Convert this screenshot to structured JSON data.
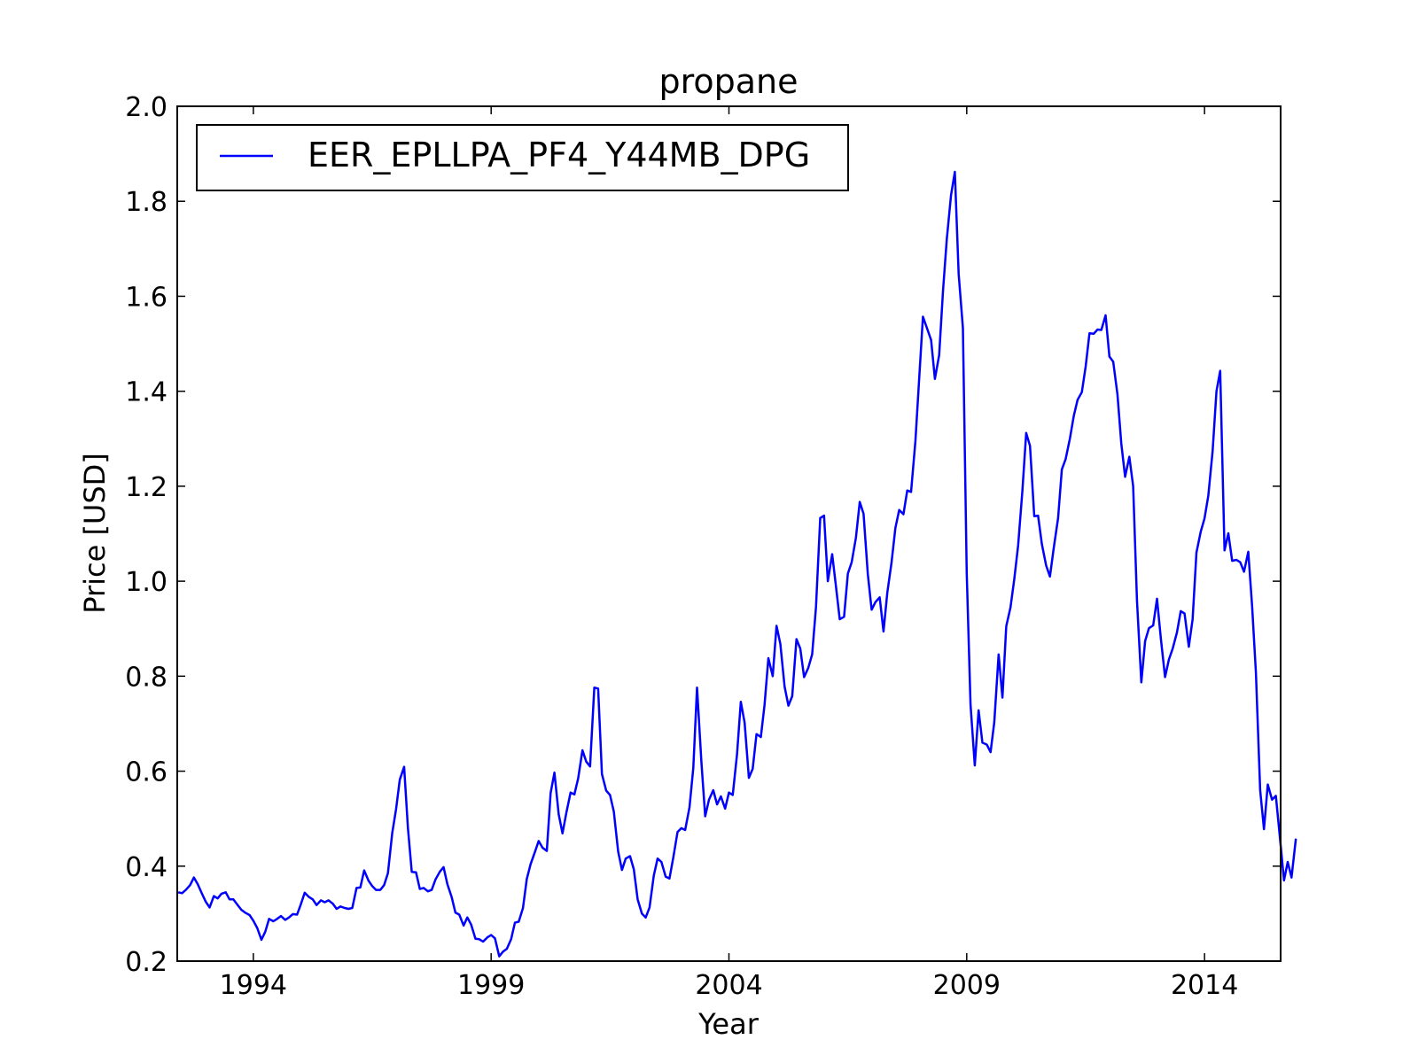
{
  "chart_data": {
    "type": "line",
    "title": "propane",
    "xlabel": "Year",
    "ylabel": "Price [USD]",
    "xlim": [
      1992.4,
      2015.6
    ],
    "ylim": [
      0.2,
      2.0
    ],
    "x_ticks": [
      1994,
      1999,
      2004,
      2009,
      2014
    ],
    "y_ticks": [
      0.2,
      0.4,
      0.6,
      0.8,
      1.0,
      1.2,
      1.4,
      1.6,
      1.8,
      2.0
    ],
    "y_tick_labels": [
      "0.2",
      "0.4",
      "0.6",
      "0.8",
      "1.0",
      "1.2",
      "1.4",
      "1.6",
      "1.8",
      "2.0"
    ],
    "legend_position": "top-left",
    "grid": false,
    "series": [
      {
        "name": "EER_EPLLPA_PF4_Y44MB_DPG",
        "color": "#0000ff",
        "points": [
          [
            1992.42,
            0.345
          ],
          [
            1992.5,
            0.343
          ],
          [
            1992.58,
            0.35
          ],
          [
            1992.67,
            0.36
          ],
          [
            1992.75,
            0.376
          ],
          [
            1992.83,
            0.362
          ],
          [
            1992.92,
            0.342
          ],
          [
            1993.0,
            0.325
          ],
          [
            1993.08,
            0.313
          ],
          [
            1993.17,
            0.337
          ],
          [
            1993.25,
            0.332
          ],
          [
            1993.33,
            0.342
          ],
          [
            1993.42,
            0.345
          ],
          [
            1993.5,
            0.33
          ],
          [
            1993.58,
            0.33
          ],
          [
            1993.67,
            0.318
          ],
          [
            1993.75,
            0.308
          ],
          [
            1993.83,
            0.302
          ],
          [
            1993.92,
            0.297
          ],
          [
            1994.0,
            0.285
          ],
          [
            1994.08,
            0.27
          ],
          [
            1994.17,
            0.245
          ],
          [
            1994.25,
            0.262
          ],
          [
            1994.33,
            0.289
          ],
          [
            1994.42,
            0.284
          ],
          [
            1994.5,
            0.289
          ],
          [
            1994.58,
            0.295
          ],
          [
            1994.67,
            0.287
          ],
          [
            1994.75,
            0.292
          ],
          [
            1994.83,
            0.299
          ],
          [
            1994.92,
            0.298
          ],
          [
            1995.0,
            0.32
          ],
          [
            1995.08,
            0.344
          ],
          [
            1995.17,
            0.335
          ],
          [
            1995.25,
            0.33
          ],
          [
            1995.33,
            0.318
          ],
          [
            1995.42,
            0.328
          ],
          [
            1995.5,
            0.324
          ],
          [
            1995.58,
            0.328
          ],
          [
            1995.67,
            0.321
          ],
          [
            1995.75,
            0.31
          ],
          [
            1995.83,
            0.315
          ],
          [
            1995.92,
            0.312
          ],
          [
            1996.0,
            0.31
          ],
          [
            1996.08,
            0.312
          ],
          [
            1996.17,
            0.354
          ],
          [
            1996.25,
            0.355
          ],
          [
            1996.33,
            0.391
          ],
          [
            1996.42,
            0.37
          ],
          [
            1996.5,
            0.358
          ],
          [
            1996.58,
            0.35
          ],
          [
            1996.67,
            0.35
          ],
          [
            1996.75,
            0.36
          ],
          [
            1996.83,
            0.385
          ],
          [
            1996.92,
            0.47
          ],
          [
            1997.0,
            0.52
          ],
          [
            1997.08,
            0.582
          ],
          [
            1997.17,
            0.609
          ],
          [
            1997.25,
            0.48
          ],
          [
            1997.33,
            0.388
          ],
          [
            1997.42,
            0.387
          ],
          [
            1997.5,
            0.352
          ],
          [
            1997.58,
            0.354
          ],
          [
            1997.67,
            0.347
          ],
          [
            1997.75,
            0.35
          ],
          [
            1997.83,
            0.372
          ],
          [
            1997.92,
            0.388
          ],
          [
            1998.0,
            0.398
          ],
          [
            1998.08,
            0.362
          ],
          [
            1998.17,
            0.335
          ],
          [
            1998.25,
            0.302
          ],
          [
            1998.33,
            0.298
          ],
          [
            1998.42,
            0.275
          ],
          [
            1998.5,
            0.292
          ],
          [
            1998.58,
            0.277
          ],
          [
            1998.67,
            0.247
          ],
          [
            1998.75,
            0.246
          ],
          [
            1998.83,
            0.241
          ],
          [
            1998.92,
            0.25
          ],
          [
            1999.0,
            0.255
          ],
          [
            1999.08,
            0.248
          ],
          [
            1999.17,
            0.21
          ],
          [
            1999.25,
            0.22
          ],
          [
            1999.33,
            0.226
          ],
          [
            1999.42,
            0.246
          ],
          [
            1999.5,
            0.281
          ],
          [
            1999.58,
            0.283
          ],
          [
            1999.67,
            0.312
          ],
          [
            1999.75,
            0.373
          ],
          [
            1999.83,
            0.404
          ],
          [
            1999.92,
            0.43
          ],
          [
            2000.0,
            0.453
          ],
          [
            2000.08,
            0.439
          ],
          [
            2000.17,
            0.432
          ],
          [
            2000.25,
            0.554
          ],
          [
            2000.33,
            0.597
          ],
          [
            2000.42,
            0.509
          ],
          [
            2000.5,
            0.469
          ],
          [
            2000.58,
            0.512
          ],
          [
            2000.67,
            0.555
          ],
          [
            2000.75,
            0.551
          ],
          [
            2000.83,
            0.585
          ],
          [
            2000.92,
            0.644
          ],
          [
            2001.0,
            0.62
          ],
          [
            2001.08,
            0.61
          ],
          [
            2001.17,
            0.776
          ],
          [
            2001.25,
            0.774
          ],
          [
            2001.33,
            0.594
          ],
          [
            2001.42,
            0.559
          ],
          [
            2001.5,
            0.55
          ],
          [
            2001.58,
            0.515
          ],
          [
            2001.67,
            0.431
          ],
          [
            2001.75,
            0.392
          ],
          [
            2001.83,
            0.416
          ],
          [
            2001.92,
            0.421
          ],
          [
            2002.0,
            0.393
          ],
          [
            2002.08,
            0.33
          ],
          [
            2002.17,
            0.3
          ],
          [
            2002.25,
            0.292
          ],
          [
            2002.33,
            0.313
          ],
          [
            2002.42,
            0.38
          ],
          [
            2002.5,
            0.416
          ],
          [
            2002.58,
            0.409
          ],
          [
            2002.67,
            0.378
          ],
          [
            2002.75,
            0.374
          ],
          [
            2002.83,
            0.418
          ],
          [
            2002.92,
            0.472
          ],
          [
            2003.0,
            0.48
          ],
          [
            2003.08,
            0.476
          ],
          [
            2003.17,
            0.524
          ],
          [
            2003.25,
            0.607
          ],
          [
            2003.33,
            0.776
          ],
          [
            2003.42,
            0.62
          ],
          [
            2003.5,
            0.505
          ],
          [
            2003.58,
            0.54
          ],
          [
            2003.67,
            0.56
          ],
          [
            2003.75,
            0.53
          ],
          [
            2003.83,
            0.547
          ],
          [
            2003.92,
            0.521
          ],
          [
            2004.0,
            0.555
          ],
          [
            2004.08,
            0.55
          ],
          [
            2004.17,
            0.635
          ],
          [
            2004.25,
            0.746
          ],
          [
            2004.33,
            0.702
          ],
          [
            2004.42,
            0.586
          ],
          [
            2004.5,
            0.605
          ],
          [
            2004.58,
            0.678
          ],
          [
            2004.67,
            0.672
          ],
          [
            2004.75,
            0.74
          ],
          [
            2004.83,
            0.838
          ],
          [
            2004.92,
            0.8
          ],
          [
            2005.0,
            0.906
          ],
          [
            2005.08,
            0.868
          ],
          [
            2005.17,
            0.778
          ],
          [
            2005.25,
            0.738
          ],
          [
            2005.33,
            0.758
          ],
          [
            2005.42,
            0.878
          ],
          [
            2005.5,
            0.858
          ],
          [
            2005.58,
            0.798
          ],
          [
            2005.67,
            0.818
          ],
          [
            2005.75,
            0.846
          ],
          [
            2005.83,
            0.945
          ],
          [
            2005.92,
            1.133
          ],
          [
            2006.0,
            1.138
          ],
          [
            2006.08,
            1.0
          ],
          [
            2006.17,
            1.057
          ],
          [
            2006.25,
            0.99
          ],
          [
            2006.33,
            0.92
          ],
          [
            2006.42,
            0.925
          ],
          [
            2006.5,
            1.016
          ],
          [
            2006.58,
            1.04
          ],
          [
            2006.67,
            1.092
          ],
          [
            2006.75,
            1.167
          ],
          [
            2006.83,
            1.142
          ],
          [
            2006.92,
            1.015
          ],
          [
            2007.0,
            0.94
          ],
          [
            2007.08,
            0.956
          ],
          [
            2007.17,
            0.966
          ],
          [
            2007.25,
            0.894
          ],
          [
            2007.33,
            0.976
          ],
          [
            2007.42,
            1.04
          ],
          [
            2007.5,
            1.112
          ],
          [
            2007.58,
            1.15
          ],
          [
            2007.67,
            1.141
          ],
          [
            2007.75,
            1.191
          ],
          [
            2007.83,
            1.188
          ],
          [
            2007.92,
            1.295
          ],
          [
            2008.0,
            1.428
          ],
          [
            2008.08,
            1.557
          ],
          [
            2008.17,
            1.531
          ],
          [
            2008.25,
            1.508
          ],
          [
            2008.33,
            1.426
          ],
          [
            2008.42,
            1.476
          ],
          [
            2008.5,
            1.61
          ],
          [
            2008.58,
            1.72
          ],
          [
            2008.67,
            1.813
          ],
          [
            2008.75,
            1.862
          ],
          [
            2008.83,
            1.647
          ],
          [
            2008.92,
            1.533
          ],
          [
            2009.0,
            1.018
          ],
          [
            2009.08,
            0.74
          ],
          [
            2009.17,
            0.612
          ],
          [
            2009.25,
            0.728
          ],
          [
            2009.33,
            0.66
          ],
          [
            2009.42,
            0.656
          ],
          [
            2009.5,
            0.64
          ],
          [
            2009.58,
            0.703
          ],
          [
            2009.67,
            0.846
          ],
          [
            2009.75,
            0.755
          ],
          [
            2009.83,
            0.905
          ],
          [
            2009.92,
            0.945
          ],
          [
            2010.0,
            1.005
          ],
          [
            2010.08,
            1.075
          ],
          [
            2010.17,
            1.19
          ],
          [
            2010.25,
            1.312
          ],
          [
            2010.33,
            1.285
          ],
          [
            2010.42,
            1.137
          ],
          [
            2010.5,
            1.138
          ],
          [
            2010.58,
            1.078
          ],
          [
            2010.67,
            1.033
          ],
          [
            2010.75,
            1.01
          ],
          [
            2010.83,
            1.07
          ],
          [
            2010.92,
            1.133
          ],
          [
            2011.0,
            1.235
          ],
          [
            2011.08,
            1.257
          ],
          [
            2011.17,
            1.301
          ],
          [
            2011.25,
            1.348
          ],
          [
            2011.33,
            1.382
          ],
          [
            2011.42,
            1.398
          ],
          [
            2011.5,
            1.452
          ],
          [
            2011.58,
            1.522
          ],
          [
            2011.67,
            1.521
          ],
          [
            2011.75,
            1.53
          ],
          [
            2011.83,
            1.529
          ],
          [
            2011.92,
            1.56
          ],
          [
            2012.0,
            1.473
          ],
          [
            2012.08,
            1.462
          ],
          [
            2012.17,
            1.393
          ],
          [
            2012.25,
            1.29
          ],
          [
            2012.33,
            1.22
          ],
          [
            2012.42,
            1.262
          ],
          [
            2012.5,
            1.2
          ],
          [
            2012.58,
            0.96
          ],
          [
            2012.67,
            0.787
          ],
          [
            2012.75,
            0.874
          ],
          [
            2012.83,
            0.901
          ],
          [
            2012.92,
            0.907
          ],
          [
            2013.0,
            0.963
          ],
          [
            2013.08,
            0.88
          ],
          [
            2013.17,
            0.798
          ],
          [
            2013.25,
            0.835
          ],
          [
            2013.33,
            0.858
          ],
          [
            2013.42,
            0.892
          ],
          [
            2013.5,
            0.937
          ],
          [
            2013.58,
            0.932
          ],
          [
            2013.67,
            0.862
          ],
          [
            2013.75,
            0.92
          ],
          [
            2013.83,
            1.06
          ],
          [
            2013.92,
            1.104
          ],
          [
            2014.0,
            1.132
          ],
          [
            2014.08,
            1.18
          ],
          [
            2014.17,
            1.275
          ],
          [
            2014.25,
            1.4
          ],
          [
            2014.33,
            1.443
          ],
          [
            2014.42,
            1.065
          ],
          [
            2014.5,
            1.101
          ],
          [
            2014.58,
            1.043
          ],
          [
            2014.67,
            1.045
          ],
          [
            2014.75,
            1.04
          ],
          [
            2014.83,
            1.02
          ],
          [
            2014.92,
            1.062
          ],
          [
            2015.0,
            0.948
          ],
          [
            2015.08,
            0.808
          ],
          [
            2015.17,
            0.56
          ],
          [
            2015.25,
            0.478
          ],
          [
            2015.33,
            0.572
          ],
          [
            2015.42,
            0.54
          ],
          [
            2015.5,
            0.548
          ],
          [
            2015.58,
            0.466
          ],
          [
            2015.67,
            0.37
          ],
          [
            2015.75,
            0.409
          ],
          [
            2015.83,
            0.376
          ],
          [
            2015.92,
            0.458
          ]
        ]
      }
    ]
  }
}
